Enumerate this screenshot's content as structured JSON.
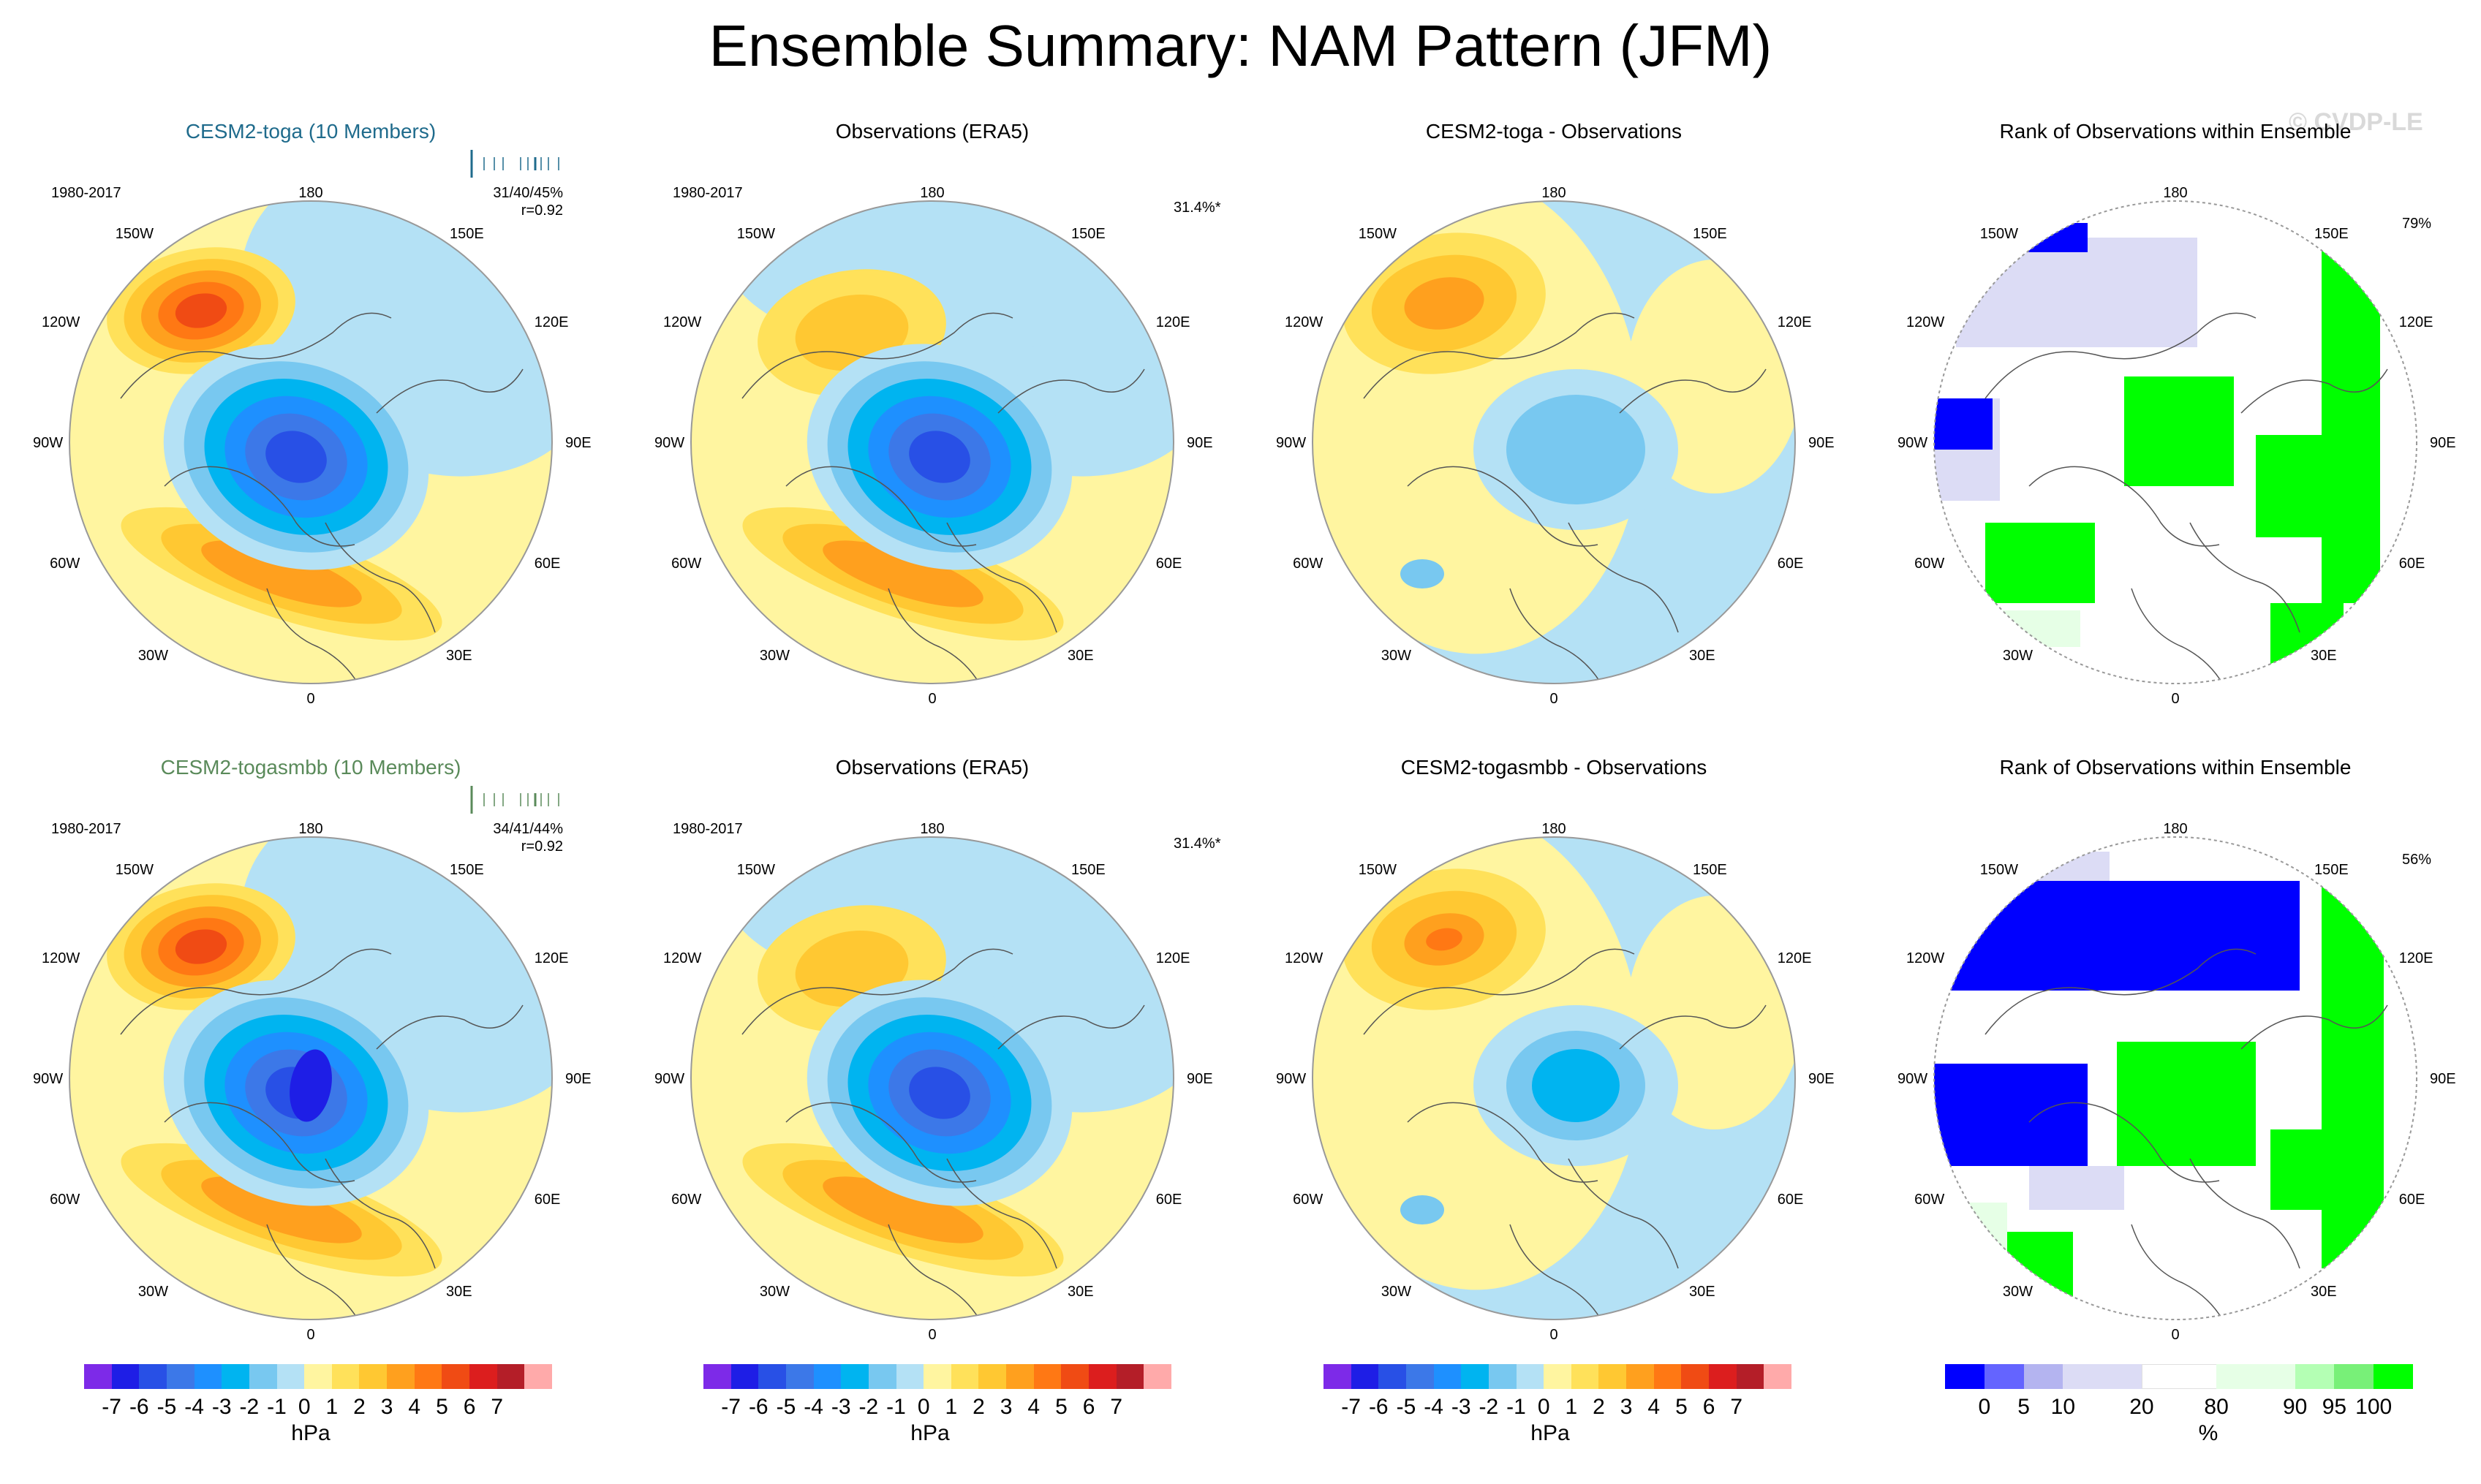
{
  "title": "Ensemble Summary: NAM Pattern (JFM)",
  "watermark": "© CVDP-LE",
  "lon_labels": {
    "top": "180",
    "bottom": "0",
    "left": "90W",
    "right": "90E",
    "nw1": "150W",
    "nw2": "120W",
    "sw1": "60W",
    "sw2": "30W",
    "ne1": "150E",
    "ne2": "120E",
    "se1": "60E",
    "se2": "30E"
  },
  "rows": [
    {
      "panels": [
        {
          "title": "CESM2-toga (10 Members)",
          "title_color": "#1f6b8c",
          "period": "1980-2017",
          "stats_pct": "31/40/45%",
          "stats_r": "r=0.92",
          "type": "nam",
          "variant": "model",
          "strength": 1.0
        },
        {
          "title": "Observations (ERA5)",
          "title_color": "#000000",
          "period": "1980-2017",
          "pct": "31.4%*",
          "type": "nam",
          "variant": "obs",
          "strength": 0.8
        },
        {
          "title": "CESM2-toga - Observations",
          "title_color": "#000000",
          "type": "diff",
          "strength": 0.5
        },
        {
          "title": "Rank of Observations within Ensemble",
          "title_color": "#000000",
          "pct": "79%",
          "type": "rank",
          "variant": "a"
        }
      ]
    },
    {
      "panels": [
        {
          "title": "CESM2-togasmbb (10 Members)",
          "title_color": "#5a8a5a",
          "period": "1980-2017",
          "stats_pct": "34/41/44%",
          "stats_r": "r=0.92",
          "type": "nam",
          "variant": "model",
          "strength": 1.1
        },
        {
          "title": "Observations (ERA5)",
          "title_color": "#000000",
          "period": "1980-2017",
          "pct": "31.4%*",
          "type": "nam",
          "variant": "obs",
          "strength": 0.8
        },
        {
          "title": "CESM2-togasmbb - Observations",
          "title_color": "#000000",
          "type": "diff",
          "strength": 0.55
        },
        {
          "title": "Rank of Observations within Ensemble",
          "title_color": "#000000",
          "pct": "56%",
          "type": "rank",
          "variant": "b"
        }
      ]
    }
  ],
  "hpa_colorbar": {
    "unit": "hPa",
    "labels": [
      "-7",
      "-6",
      "-5",
      "-4",
      "-3",
      "-2",
      "-1",
      "0",
      "1",
      "2",
      "3",
      "4",
      "5",
      "6",
      "7"
    ],
    "colors": [
      "#7d2ae8",
      "#1e1ee6",
      "#2850e6",
      "#3c78e8",
      "#1e90ff",
      "#00b4f0",
      "#78c8f0",
      "#b4e1f5",
      "#fff5a0",
      "#ffe15a",
      "#ffc832",
      "#ffa01e",
      "#ff7814",
      "#f04b14",
      "#dc1e1e",
      "#b41e28",
      "#ffaaaa"
    ]
  },
  "rank_colorbar": {
    "unit": "%",
    "labels": [
      "0",
      "5",
      "10",
      "20",
      "80",
      "90",
      "95",
      "100"
    ],
    "colors": [
      "#0000ff",
      "#6464ff",
      "#b4b4f0",
      "#dcdcf5",
      "#ffffff",
      "#e6ffe6",
      "#b4ffb4",
      "#78f078",
      "#00ff00"
    ]
  },
  "colors": {
    "ocean": "#b4e1f5",
    "land_pos": "#fff5a0",
    "coast": "#555555",
    "circle": "#999999"
  }
}
